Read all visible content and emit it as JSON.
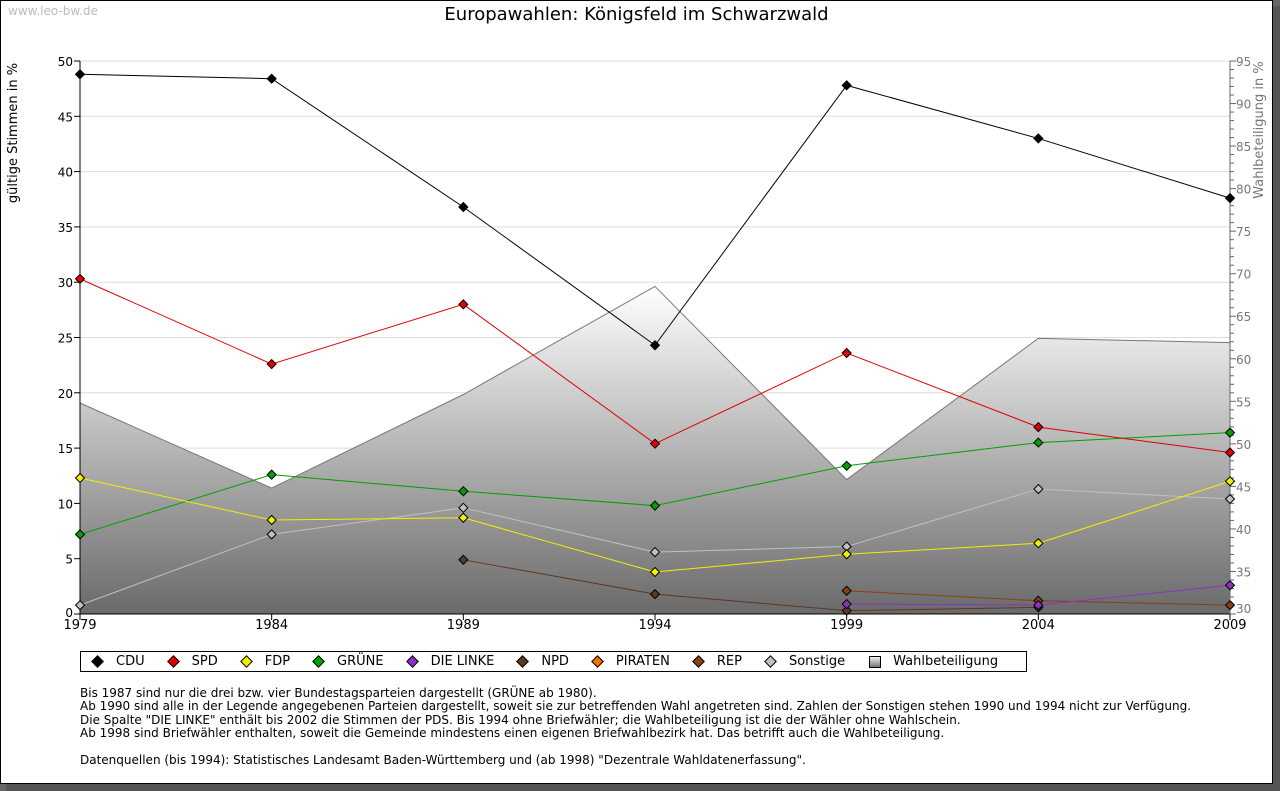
{
  "watermark": "www.leo-bw.de",
  "chart_data": {
    "type": "line",
    "title": "Europawahlen: Königsfeld im Schwarzwald",
    "ylabel": "gültige Stimmen in %",
    "y2label": "Wahlbeteiligung in %",
    "ylim": [
      0,
      50
    ],
    "y2lim": [
      30,
      95
    ],
    "yticks": [
      "0",
      "5",
      "10",
      "15",
      "20",
      "25",
      "30",
      "35",
      "40",
      "45",
      "50"
    ],
    "y2ticks": [
      "30",
      "35",
      "40",
      "45",
      "50",
      "55",
      "60",
      "65",
      "70",
      "75",
      "80",
      "85",
      "90",
      "95"
    ],
    "categories": [
      "1979",
      "1984",
      "1989",
      "1994",
      "1999",
      "2004",
      "2009"
    ],
    "grid": true,
    "legend_position": "bottom",
    "series": [
      {
        "name": "CDU",
        "color": "#000000",
        "values": [
          48.8,
          48.4,
          36.8,
          24.3,
          47.8,
          43.0,
          37.6
        ]
      },
      {
        "name": "SPD",
        "color": "#e00000",
        "values": [
          30.3,
          22.6,
          28.0,
          15.4,
          23.6,
          16.9,
          14.6
        ]
      },
      {
        "name": "FDP",
        "color": "#f0f000",
        "values": [
          12.3,
          8.5,
          8.7,
          3.8,
          5.4,
          6.4,
          12.0
        ]
      },
      {
        "name": "GRÜNE",
        "color": "#00a000",
        "values": [
          7.2,
          12.6,
          11.1,
          9.8,
          13.4,
          15.5,
          16.4
        ]
      },
      {
        "name": "DIE LINKE",
        "color": "#9030c0",
        "values": [
          null,
          null,
          null,
          null,
          0.9,
          0.8,
          2.6
        ]
      },
      {
        "name": "NPD",
        "color": "#5a3a25",
        "values": [
          null,
          null,
          4.9,
          1.8,
          0.3,
          0.6,
          null
        ]
      },
      {
        "name": "PIRATEN",
        "color": "#f07000",
        "values": [
          null,
          null,
          null,
          null,
          null,
          null,
          null
        ]
      },
      {
        "name": "REP",
        "color": "#8a4010",
        "values": [
          null,
          null,
          null,
          null,
          2.1,
          1.2,
          0.8
        ]
      },
      {
        "name": "Sonstige",
        "color": "#c0c0c0",
        "values": [
          0.8,
          7.2,
          9.6,
          5.6,
          6.1,
          11.3,
          10.4
        ]
      }
    ],
    "turnout": {
      "name": "Wahlbeteiligung",
      "values": [
        54.8,
        44.8,
        55.8,
        68.5,
        45.8,
        62.4,
        61.9
      ]
    }
  },
  "notes": "Bis 1987 sind nur die drei bzw. vier Bundestagsparteien dargestellt (GRÜNE ab 1980).\nAb 1990 sind alle in der Legende angegebenen Parteien dargestellt, soweit sie zur betreffenden Wahl angetreten sind. Zahlen der Sonstigen stehen 1990 und 1994 nicht zur Verfügung.\nDie Spalte \"DIE LINKE\" enthält bis 2002 die Stimmen der PDS. Bis 1994 ohne Briefwähler; die Wahlbeteiligung ist die der Wähler ohne Wahlschein.\nAb 1998 sind Briefwähler enthalten, soweit die Gemeinde mindestens einen eigenen Briefwahlbezirk hat. Das betrifft auch die Wahlbeteiligung.\n\nDatenquellen (bis 1994): Statistisches Landesamt Baden-Württemberg und (ab 1998) \"Dezentrale Wahldatenerfassung\"."
}
